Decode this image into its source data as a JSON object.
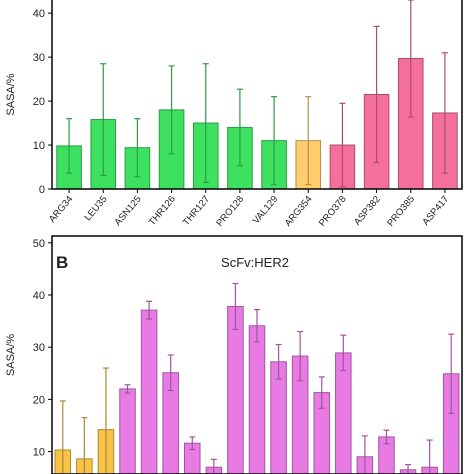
{
  "chart_data": [
    {
      "type": "bar",
      "y_label": "SASA/%",
      "categories": [
        "ARG34",
        "LEU35",
        "ASN125",
        "THR126",
        "THR127",
        "PRO128",
        "VAL129",
        "ARG354",
        "PRO378",
        "ASP382",
        "PRO385",
        "ASP417"
      ],
      "values": [
        9.8,
        15.8,
        9.4,
        18,
        15,
        14,
        11,
        11,
        10,
        21.5,
        29.7,
        17.3
      ],
      "errors": [
        6.2,
        12.7,
        6.6,
        10,
        13.5,
        8.7,
        10,
        10,
        9.5,
        15.5,
        13.3,
        13.7
      ],
      "colors": [
        "#3ee060",
        "#3ee060",
        "#3ee060",
        "#3ee060",
        "#3ee060",
        "#3ee060",
        "#3ee060",
        "#ffcc6e",
        "#f4709a",
        "#f4709a",
        "#f4709a",
        "#f4709a"
      ],
      "ylim": [
        0,
        43
      ],
      "yticks": [
        0,
        10,
        20,
        30,
        40
      ]
    },
    {
      "type": "bar",
      "panel_label": "B",
      "title": "ScFv:HER2",
      "y_label": "SASA/%",
      "categories": [
        null,
        null,
        null,
        null,
        null,
        null,
        null,
        null,
        null,
        null,
        null,
        null,
        null,
        null,
        null,
        null,
        null,
        null,
        null
      ],
      "values": [
        10.3,
        8.6,
        14.2,
        22,
        37.1,
        25.1,
        11.6,
        7,
        37.8,
        34.1,
        27.2,
        28.3,
        21.3,
        28.9,
        9,
        12.8,
        6.5,
        7,
        24.9
      ],
      "errors": [
        9.4,
        7.9,
        11.8,
        0.8,
        1.7,
        3.4,
        1.2,
        1.5,
        4.4,
        3.1,
        3.3,
        4.7,
        3,
        3.4,
        4,
        1.3,
        1,
        5.2,
        7.6
      ],
      "colors": [
        "#f8c448",
        "#f8c448",
        "#f8c448",
        "#e77ae3",
        "#e77ae3",
        "#e77ae3",
        "#e77ae3",
        "#e77ae3",
        "#e77ae3",
        "#e77ae3",
        "#e77ae3",
        "#e77ae3",
        "#e77ae3",
        "#e77ae3",
        "#e77ae3",
        "#e77ae3",
        "#e77ae3",
        "#e77ae3",
        "#e77ae3"
      ],
      "ylim": [
        5.7,
        51.3
      ],
      "yticks": [
        10,
        20,
        30,
        40,
        50
      ]
    }
  ]
}
